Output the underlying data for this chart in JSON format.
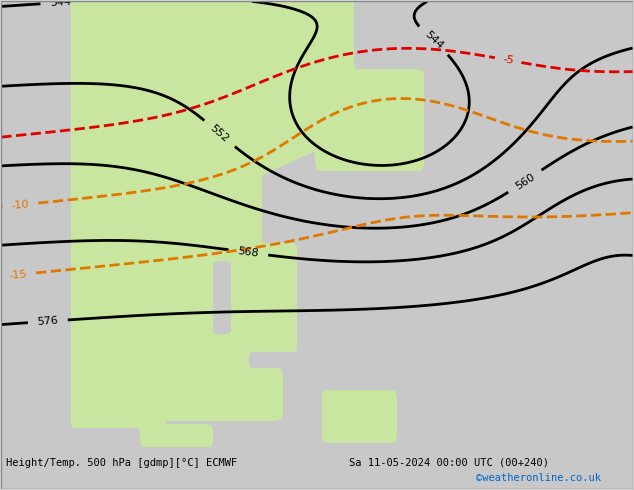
{
  "title_left": "Height/Temp. 500 hPa [gdmp][°C] ECMWF",
  "title_right": "Sa 11-05-2024 00:00 UTC (00+240)",
  "credit": "©weatheronline.co.uk",
  "background_color": "#d0d0d0",
  "land_color_green": "#c8e6a0",
  "land_color_gray": "#c8c8c8",
  "xlim": [
    85,
    175
  ],
  "ylim": [
    -15,
    55
  ],
  "fig_width": 6.34,
  "fig_height": 4.9,
  "dpi": 100,
  "height_contours": {
    "color": "#000000",
    "linewidth": 2.0,
    "label_fontsize": 8
  },
  "temp_orange_contours": {
    "color": "#e07800",
    "linewidth": 2.0,
    "linestyle": "dashed",
    "label_fontsize": 8
  },
  "temp_red_contours": {
    "color": "#e00000",
    "linewidth": 2.0,
    "linestyle": "dashed",
    "label_fontsize": 8
  }
}
